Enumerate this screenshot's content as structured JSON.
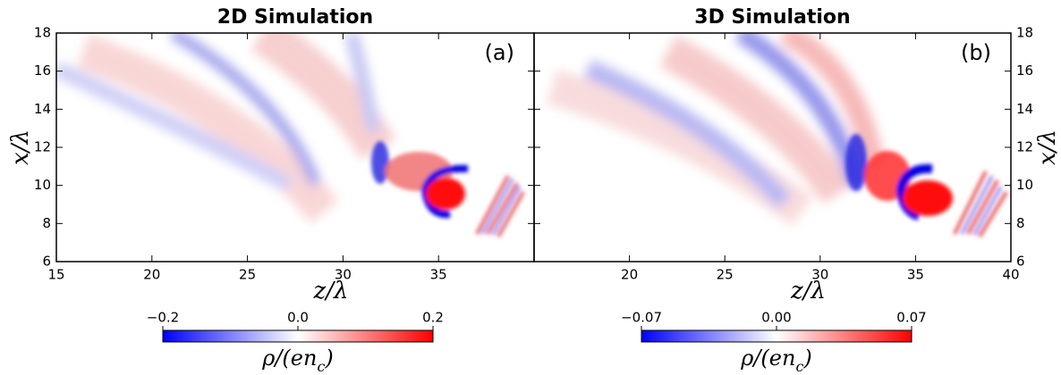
{
  "chart_data": [
    {
      "type": "heatmap",
      "title": "2D Simulation",
      "panel_label": "(a)",
      "xlabel": "z/λ",
      "ylabel": "x/λ",
      "yaxis_side": "left",
      "xlim": [
        15,
        40
      ],
      "ylim": [
        6,
        18
      ],
      "xticks": [
        15,
        20,
        25,
        30,
        35
      ],
      "yticks": [
        6,
        8,
        10,
        12,
        14,
        16,
        18
      ],
      "colorbar": {
        "lim": [
          -0.2,
          0.2
        ],
        "ticks": [
          {
            "value": -0.2,
            "label": "−0.2"
          },
          {
            "value": 0,
            "label": "0.0"
          },
          0.2
        ],
        "label": [
          "ρ/(en",
          "c",
          ")"
        ]
      }
    },
    {
      "type": "heatmap",
      "title": "3D Simulation",
      "panel_label": "(b)",
      "xlabel": "z/λ",
      "ylabel": "x/λ",
      "yaxis_side": "right",
      "xlim": [
        15,
        40
      ],
      "ylim": [
        6,
        18
      ],
      "xticks": [
        20,
        25,
        30,
        35,
        40
      ],
      "yticks": [
        6,
        8,
        10,
        12,
        14,
        16,
        18
      ],
      "colorbar": {
        "lim": [
          -0.07,
          0.07
        ],
        "ticks": [
          {
            "value": -0.07,
            "label": "−0.07"
          },
          {
            "value": 0,
            "label": "0.00"
          },
          0.07
        ],
        "label": [
          "ρ/(en",
          "c",
          ")"
        ]
      }
    }
  ]
}
